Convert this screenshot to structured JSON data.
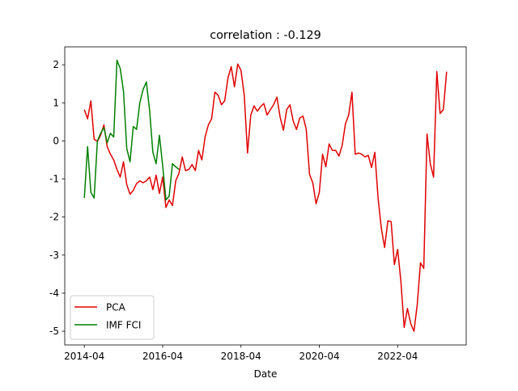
{
  "chart_data": {
    "type": "line",
    "title": "correlation : -0.129",
    "x_label": "Date",
    "x": [
      "2014-04",
      "2014-05",
      "2014-06",
      "2014-07",
      "2014-08",
      "2014-09",
      "2014-10",
      "2014-11",
      "2014-12",
      "2015-01",
      "2015-02",
      "2015-03",
      "2015-04",
      "2015-05",
      "2015-06",
      "2015-07",
      "2015-08",
      "2015-09",
      "2015-10",
      "2015-11",
      "2015-12",
      "2016-01",
      "2016-02",
      "2016-03",
      "2016-04",
      "2016-05",
      "2016-06",
      "2016-07",
      "2016-08",
      "2016-09",
      "2016-10",
      "2016-11",
      "2016-12",
      "2017-01",
      "2017-02",
      "2017-03",
      "2017-04",
      "2017-05",
      "2017-06",
      "2017-07",
      "2017-08",
      "2017-09",
      "2017-10",
      "2017-11",
      "2017-12",
      "2018-01",
      "2018-02",
      "2018-03",
      "2018-04",
      "2018-05",
      "2018-06",
      "2018-07",
      "2018-08",
      "2018-09",
      "2018-10",
      "2018-11",
      "2018-12",
      "2019-01",
      "2019-02",
      "2019-03",
      "2019-04",
      "2019-05",
      "2019-06",
      "2019-07",
      "2019-08",
      "2019-09",
      "2019-10",
      "2019-11",
      "2019-12",
      "2020-01",
      "2020-02",
      "2020-03",
      "2020-04",
      "2020-05",
      "2020-06",
      "2020-07",
      "2020-08",
      "2020-09",
      "2020-10",
      "2020-11",
      "2020-12",
      "2021-01",
      "2021-02",
      "2021-03",
      "2021-04",
      "2021-05",
      "2021-06",
      "2021-07",
      "2021-08",
      "2021-09",
      "2021-10",
      "2021-11",
      "2021-12",
      "2022-01",
      "2022-02",
      "2022-03",
      "2022-04",
      "2022-05",
      "2022-06",
      "2022-07",
      "2022-08",
      "2022-09",
      "2022-10",
      "2022-11",
      "2022-12",
      "2023-01",
      "2023-02",
      "2023-03",
      "2023-04",
      "2023-05",
      "2023-06",
      "2023-07"
    ],
    "series": [
      {
        "name": "PCA",
        "color": "#e00000",
        "values": [
          0.82,
          0.58,
          1.05,
          0.05,
          -0.02,
          0.15,
          0.42,
          -0.15,
          -0.35,
          -0.5,
          -0.75,
          -0.95,
          -0.55,
          -1.15,
          -1.4,
          -1.3,
          -1.12,
          -1.05,
          -1.1,
          -1.05,
          -0.95,
          -1.28,
          -0.9,
          -1.38,
          -0.95,
          -1.75,
          -1.55,
          -1.7,
          -1.05,
          -0.85,
          -0.42,
          -0.78,
          -0.75,
          -0.62,
          -0.78,
          -0.25,
          -0.5,
          0.1,
          0.42,
          0.58,
          1.28,
          1.2,
          0.95,
          1.05,
          1.65,
          1.95,
          1.42,
          2.02,
          1.85,
          1.2,
          -0.32,
          0.68,
          0.92,
          0.78,
          0.9,
          0.98,
          0.68,
          0.82,
          0.95,
          1.15,
          0.62,
          0.28,
          0.82,
          0.95,
          0.52,
          0.3,
          0.6,
          0.65,
          0.3,
          -0.88,
          -1.1,
          -1.65,
          -1.35,
          -0.35,
          -0.68,
          -0.08,
          -0.25,
          -0.25,
          -0.4,
          -0.12,
          0.45,
          0.68,
          1.28,
          -0.35,
          -0.32,
          -0.35,
          -0.42,
          -0.38,
          -0.7,
          -0.3,
          -1.5,
          -2.3,
          -2.8,
          -2.1,
          -2.12,
          -3.25,
          -2.85,
          -3.7,
          -4.9,
          -4.4,
          -4.8,
          -5.0,
          -4.3,
          -3.2,
          -3.35,
          0.18,
          -0.6,
          -0.95,
          1.82,
          0.72,
          0.82,
          1.82
        ]
      },
      {
        "name": "IMF FCI",
        "color": "#008000",
        "values": [
          -1.5,
          -0.15,
          -1.35,
          -1.5,
          0.0,
          0.2,
          0.35,
          -0.05,
          0.2,
          0.1,
          2.12,
          1.9,
          1.3,
          -0.2,
          -0.55,
          0.38,
          0.3,
          1.0,
          1.35,
          1.55,
          0.8,
          -0.3,
          -0.6,
          0.15,
          -0.65,
          -1.55,
          -1.45,
          -0.6,
          -0.68,
          -0.75,
          null,
          null,
          null,
          null,
          null,
          null,
          null,
          null,
          null,
          null,
          null,
          null,
          null,
          null,
          null,
          null,
          null,
          null,
          null,
          null,
          null,
          null,
          null,
          null,
          null,
          null,
          null,
          null,
          null,
          null,
          null,
          null,
          null,
          null,
          null,
          null,
          null,
          null,
          null,
          null,
          null,
          null,
          null,
          null,
          null,
          null,
          null,
          null,
          null,
          null,
          null,
          null,
          null,
          null,
          null,
          null,
          null,
          null,
          null,
          null,
          null,
          null,
          null,
          null,
          null,
          null,
          null,
          null,
          null,
          null,
          null,
          null,
          null,
          null,
          null,
          null,
          null,
          null,
          null,
          null,
          null,
          null
        ]
      }
    ],
    "xlim": [
      "2013-10",
      "2024-01"
    ],
    "xticks": [
      "2014-04",
      "2016-04",
      "2018-04",
      "2020-04",
      "2022-04"
    ],
    "ylim": [
      -5.36,
      2.47
    ],
    "yticks": [
      -5,
      -4,
      -3,
      -2,
      -1,
      0,
      1,
      2
    ],
    "grid": false,
    "legend": "lower left"
  }
}
